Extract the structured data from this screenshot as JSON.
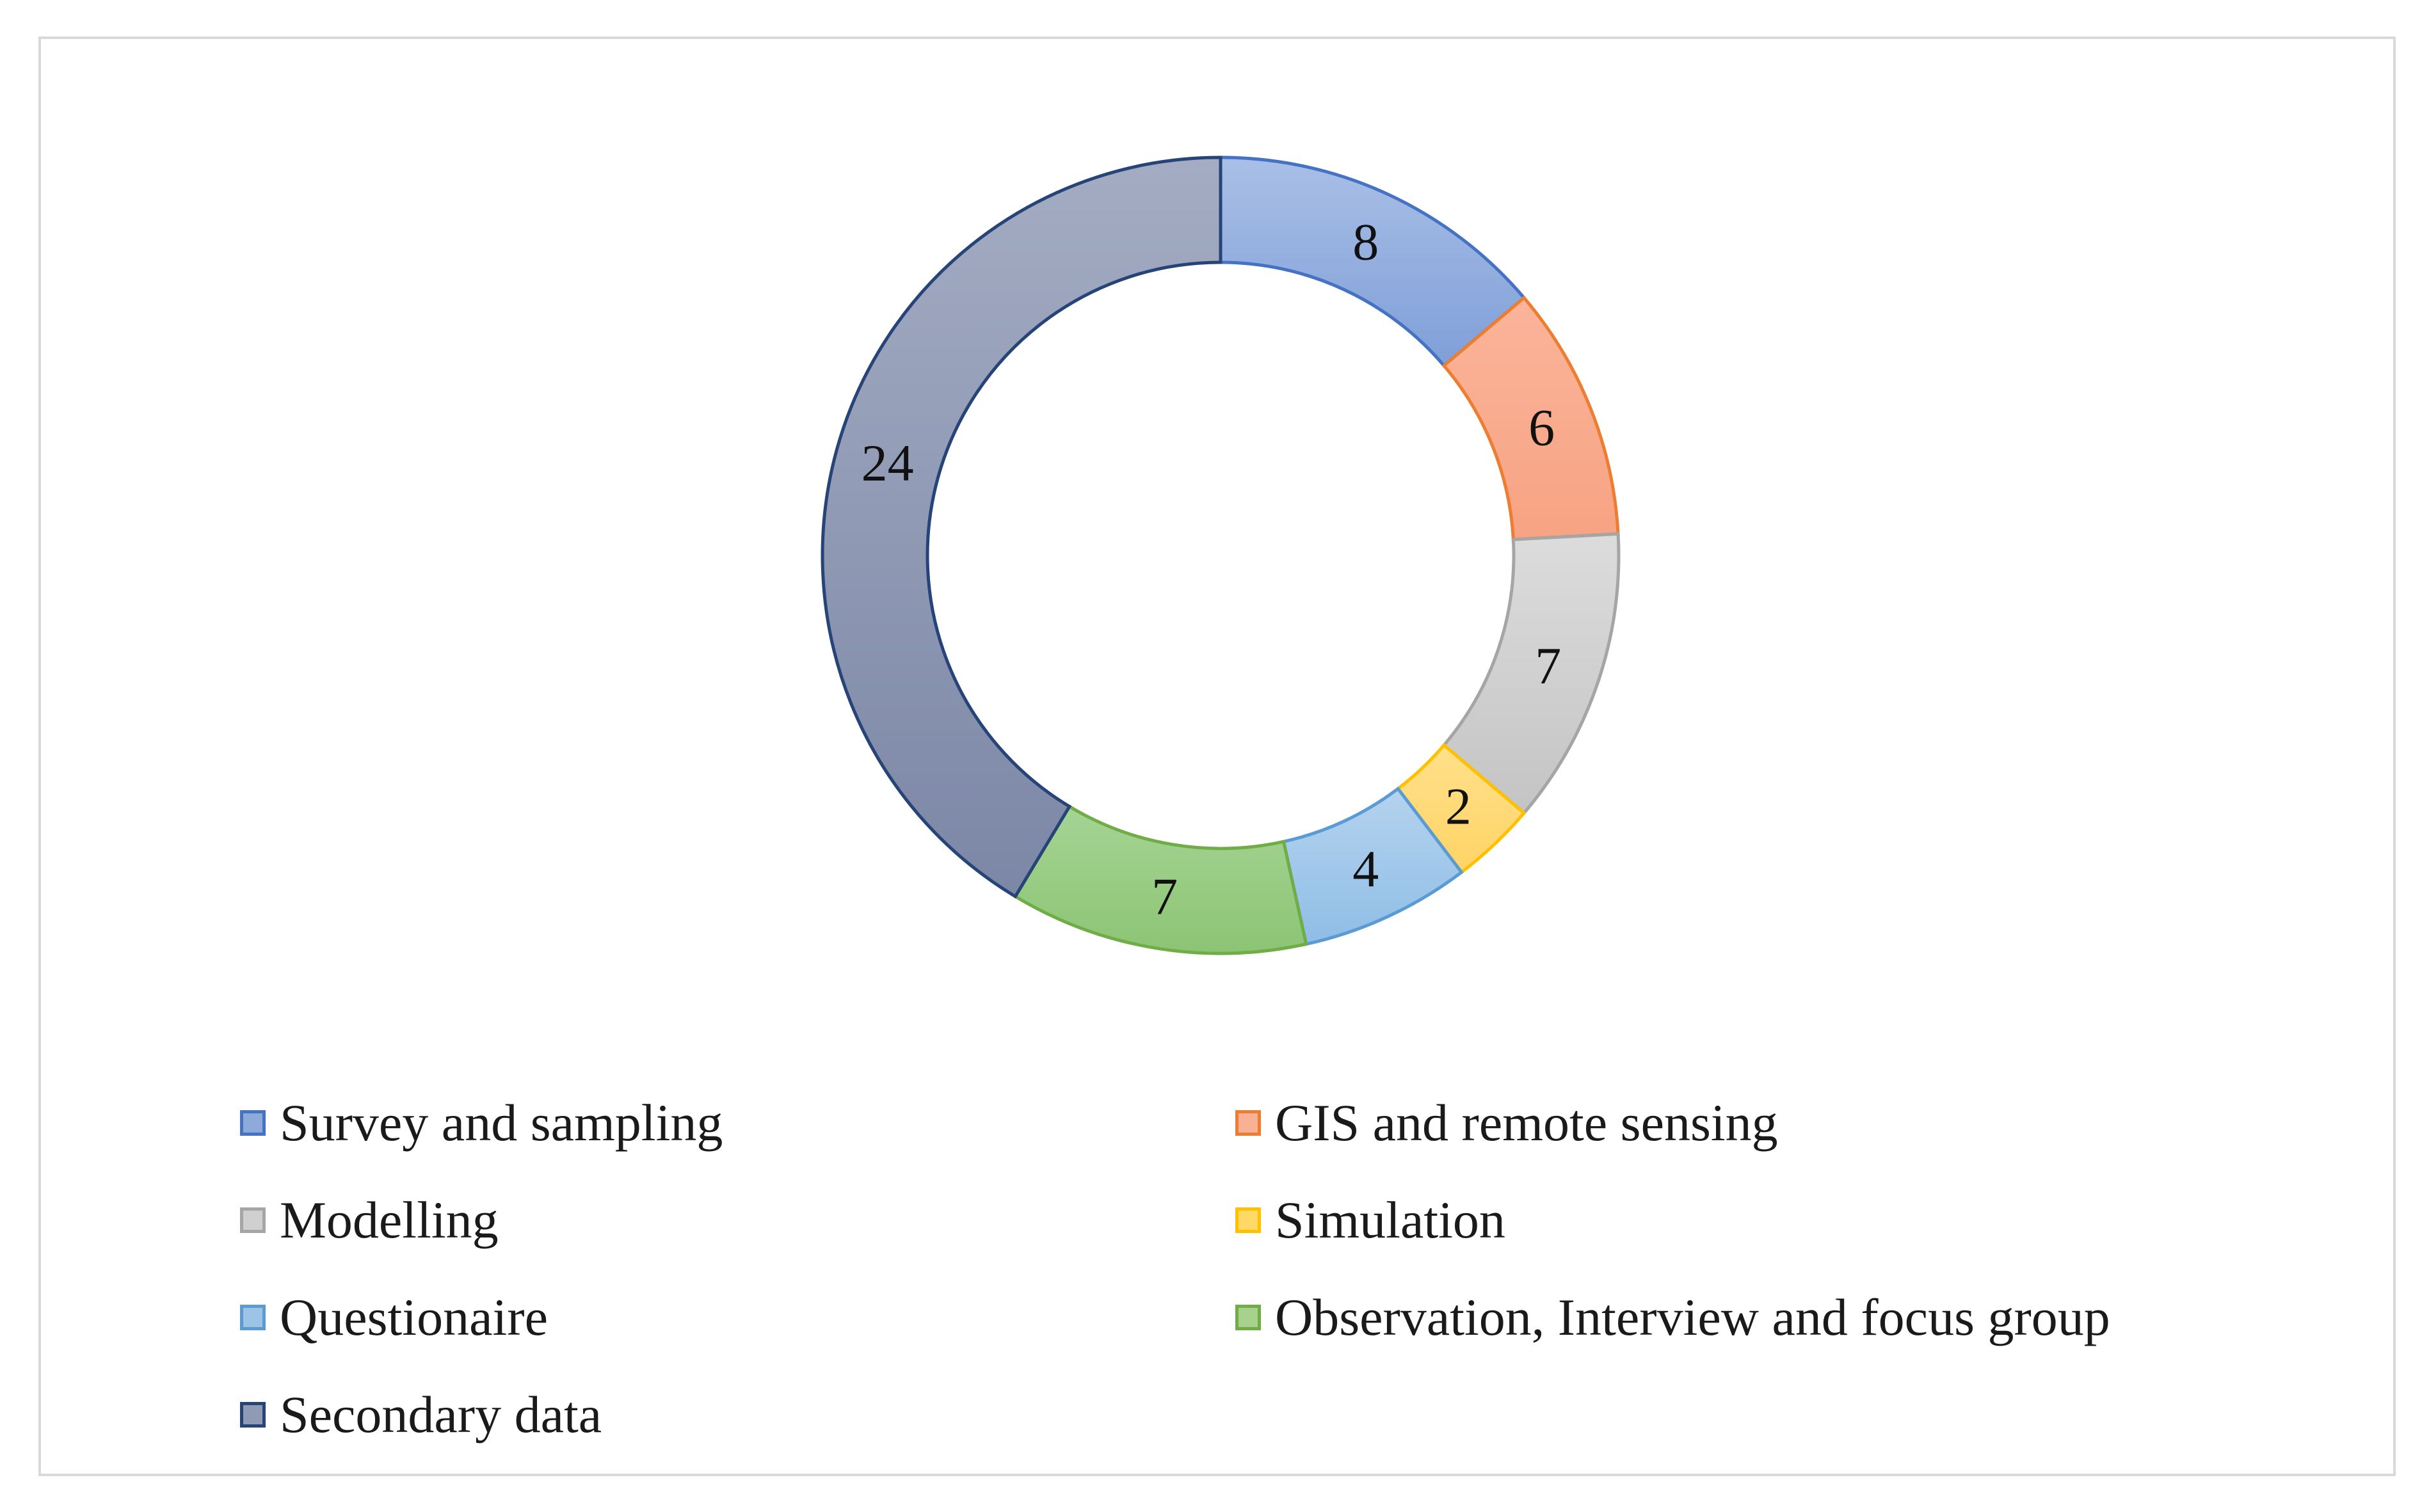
{
  "chart_data": {
    "type": "donut",
    "title": "",
    "series": [
      {
        "name": "Survey and sampling",
        "value": 8,
        "fill": "#8eaadb",
        "stroke": "#4472c4"
      },
      {
        "name": "GIS and remote sensing",
        "value": 6,
        "fill": "#f8b195",
        "stroke": "#ed7d31"
      },
      {
        "name": "Modelling",
        "value": 7,
        "fill": "#d0d0d0",
        "stroke": "#a5a5a5"
      },
      {
        "name": "Simulation",
        "value": 2,
        "fill": "#ffd966",
        "stroke": "#ffc000"
      },
      {
        "name": "Questionaire",
        "value": 4,
        "fill": "#9dc3e6",
        "stroke": "#5b9bd5"
      },
      {
        "name": "Observation, Interview and focus group",
        "value": 7,
        "fill": "#a9d18e",
        "stroke": "#70ad47"
      },
      {
        "name": "Secondary data",
        "value": 24,
        "fill": "#8f9ab5",
        "stroke": "#264478"
      }
    ],
    "legend_position": "bottom",
    "start_angle": "top, clockwise"
  }
}
